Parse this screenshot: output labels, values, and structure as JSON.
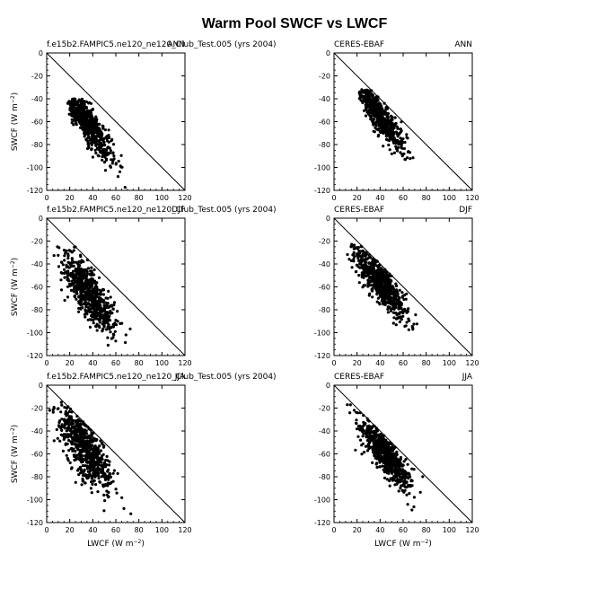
{
  "figure_title": "Warm Pool SWCF vs LWCF",
  "colors": {
    "points": "#000000",
    "axes": "#000000",
    "background": "#ffffff"
  },
  "chart_data": [
    {
      "type": "scatter",
      "row": 1,
      "col": 1,
      "left_label": "f.e15b2.FAMPIC5.ne120_ne120_Club_Test.005 (yrs 2004)",
      "right_label": "ANN",
      "xlabel": "",
      "ylabel_main": "SWCF",
      "ylabel_unit": "(W m",
      "xlim": [
        0,
        120
      ],
      "ylim": [
        -120,
        0
      ],
      "x_ticks": [
        0,
        20,
        40,
        60,
        80,
        100,
        120
      ],
      "y_ticks": [
        0,
        -20,
        -40,
        -60,
        -80,
        -100,
        -120
      ],
      "reference_line": "y = -x",
      "point_cloud": {
        "n_points": 650,
        "x_range": [
          18,
          82
        ],
        "y_range": [
          -118,
          -40
        ],
        "center": [
          35,
          -60
        ],
        "trend_slope": -1.3,
        "spread": 8
      }
    },
    {
      "type": "scatter",
      "row": 1,
      "col": 2,
      "left_label": "CERES-EBAF",
      "right_label": "ANN",
      "xlabel": "",
      "ylabel_main": "",
      "ylabel_unit": "",
      "xlim": [
        0,
        120
      ],
      "ylim": [
        -120,
        0
      ],
      "x_ticks": [
        0,
        20,
        40,
        60,
        80,
        100,
        120
      ],
      "y_ticks": [
        0,
        -20,
        -40,
        -60,
        -80,
        -100,
        -120
      ],
      "reference_line": "y = -x",
      "point_cloud": {
        "n_points": 650,
        "x_range": [
          22,
          70
        ],
        "y_range": [
          -108,
          -32
        ],
        "center": [
          40,
          -55
        ],
        "trend_slope": -1.25,
        "spread": 7
      }
    },
    {
      "type": "scatter",
      "row": 2,
      "col": 1,
      "left_label": "f.e15b2.FAMPIC5.ne120_ne120_Club_Test.005 (yrs 2004)",
      "right_label": "DJF",
      "xlabel": "",
      "ylabel_main": "SWCF",
      "ylabel_unit": "(W m",
      "xlim": [
        0,
        120
      ],
      "ylim": [
        -120,
        0
      ],
      "x_ticks": [
        0,
        20,
        40,
        60,
        80,
        100,
        120
      ],
      "y_ticks": [
        0,
        -20,
        -40,
        -60,
        -80,
        -100,
        -120
      ],
      "reference_line": "y = -x",
      "point_cloud": {
        "n_points": 700,
        "x_range": [
          5,
          82
        ],
        "y_range": [
          -120,
          -25
        ],
        "center": [
          38,
          -68
        ],
        "trend_slope": -1.15,
        "spread": 11
      }
    },
    {
      "type": "scatter",
      "row": 2,
      "col": 2,
      "left_label": "CERES-EBAF",
      "right_label": "DJF",
      "xlabel": "",
      "ylabel_main": "",
      "ylabel_unit": "",
      "xlim": [
        0,
        120
      ],
      "ylim": [
        -120,
        0
      ],
      "x_ticks": [
        0,
        20,
        40,
        60,
        80,
        100,
        120
      ],
      "y_ticks": [
        0,
        -20,
        -40,
        -60,
        -80,
        -100,
        -120
      ],
      "reference_line": "y = -x",
      "point_cloud": {
        "n_points": 750,
        "x_range": [
          10,
          78
        ],
        "y_range": [
          -118,
          -22
        ],
        "center": [
          40,
          -55
        ],
        "trend_slope": -1.2,
        "spread": 9
      }
    },
    {
      "type": "scatter",
      "row": 3,
      "col": 1,
      "left_label": "f.e15b2.FAMPIC5.ne120_ne120_Club_Test.005 (yrs 2004)",
      "right_label": "JJA",
      "xlabel": "LWCF",
      "xlabel_unit": "(W m",
      "ylabel_main": "SWCF",
      "ylabel_unit": "(W m",
      "xlim": [
        0,
        120
      ],
      "ylim": [
        -120,
        0
      ],
      "x_ticks": [
        0,
        20,
        40,
        60,
        80,
        100,
        120
      ],
      "y_ticks": [
        0,
        -20,
        -40,
        -60,
        -80,
        -100,
        -120
      ],
      "reference_line": "y = -x",
      "point_cloud": {
        "n_points": 700,
        "x_range": [
          2,
          75
        ],
        "y_range": [
          -118,
          -10
        ],
        "center": [
          33,
          -55
        ],
        "trend_slope": -1.2,
        "spread": 13
      }
    },
    {
      "type": "scatter",
      "row": 3,
      "col": 2,
      "left_label": "CERES-EBAF",
      "right_label": "JJA",
      "xlabel": "LWCF",
      "xlabel_unit": "(W m",
      "ylabel_main": "",
      "ylabel_unit": "",
      "xlim": [
        0,
        120
      ],
      "ylim": [
        -120,
        0
      ],
      "x_ticks": [
        0,
        20,
        40,
        60,
        80,
        100,
        120
      ],
      "y_ticks": [
        0,
        -20,
        -40,
        -60,
        -80,
        -100,
        -120
      ],
      "reference_line": "y = -x",
      "point_cloud": {
        "n_points": 700,
        "x_range": [
          8,
          80
        ],
        "y_range": [
          -112,
          -12
        ],
        "center": [
          45,
          -60
        ],
        "trend_slope": -1.15,
        "spread": 9
      }
    }
  ]
}
